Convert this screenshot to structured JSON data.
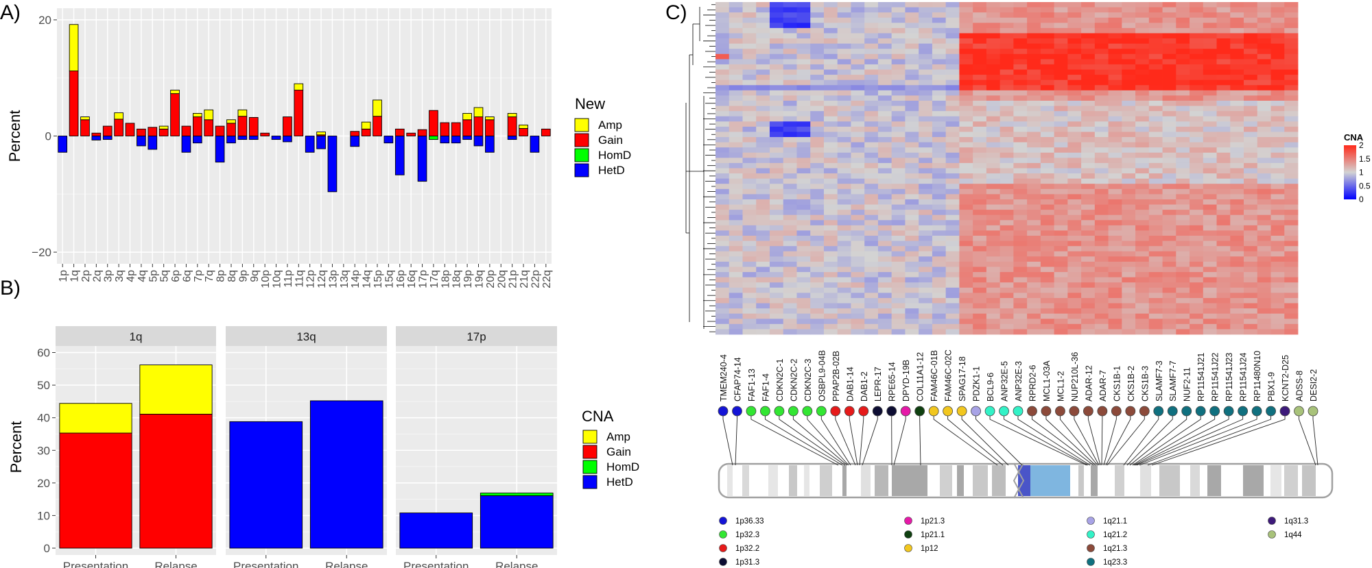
{
  "panels": {
    "a": "A)",
    "b": "B)",
    "c": "C)"
  },
  "chart_data": [
    {
      "panel": "A",
      "type": "bar",
      "stacked": true,
      "ylabel": "Percent",
      "ylim": [
        -22,
        22
      ],
      "yticks": [
        -20,
        0,
        20
      ],
      "categories": [
        "1p",
        "1q",
        "2p",
        "2q",
        "3p",
        "3q",
        "4p",
        "4q",
        "5p",
        "5q",
        "6p",
        "6q",
        "7p",
        "7q",
        "8p",
        "8q",
        "9p",
        "9q",
        "10p",
        "10q",
        "11p",
        "11q",
        "12p",
        "12q",
        "13p",
        "13q",
        "14p",
        "14q",
        "15p",
        "15q",
        "16p",
        "16q",
        "17p",
        "17q",
        "18p",
        "18q",
        "19p",
        "19q",
        "20p",
        "20q",
        "21p",
        "21q",
        "22p",
        "22q"
      ],
      "series": [
        {
          "name": "Gain",
          "color": "#FF0000",
          "values": [
            0,
            11.2,
            2.8,
            0.5,
            1.7,
            2.9,
            2.2,
            1.2,
            1.5,
            1.2,
            7.3,
            1.7,
            3.3,
            2.8,
            1.7,
            2.2,
            3.4,
            3.2,
            0.5,
            0,
            3.3,
            7.9,
            0,
            0.2,
            0,
            0,
            0.8,
            1.2,
            3.4,
            0,
            1.2,
            0.5,
            1.1,
            4.4,
            2.3,
            2.3,
            2.8,
            3.3,
            2.8,
            0,
            3.3,
            1.3,
            0,
            1.2
          ]
        },
        {
          "name": "Amp",
          "color": "#FFFF00",
          "values": [
            0,
            8,
            0.5,
            0,
            0,
            1.1,
            0,
            0,
            0,
            0.5,
            0.6,
            0,
            0.6,
            1.7,
            0,
            0.6,
            1.1,
            0,
            0,
            0,
            0,
            1.1,
            0,
            0.5,
            0,
            0,
            0,
            1.2,
            2.8,
            0,
            0,
            0,
            0,
            0,
            0,
            0,
            1.1,
            1.6,
            0.5,
            0,
            0.6,
            0.6,
            0,
            0
          ]
        },
        {
          "name": "HetD",
          "color": "#0000FF",
          "values": [
            -2.8,
            0,
            0,
            -0.7,
            -0.6,
            0,
            0,
            -1.7,
            -2.3,
            0,
            0,
            -2.8,
            -1.2,
            0,
            -4.5,
            -1.2,
            -0.6,
            -0.6,
            0,
            -0.6,
            -1,
            0,
            -2.8,
            -2.2,
            -9.6,
            0,
            -1.8,
            0,
            0,
            -1.2,
            -6.7,
            0,
            -7.8,
            0,
            -1.2,
            -1.2,
            -0.6,
            -1.7,
            -2.8,
            0,
            -0.6,
            0,
            -2.8,
            0
          ]
        },
        {
          "name": "HomD",
          "color": "#00FF00",
          "values": [
            0,
            0,
            0,
            0,
            0,
            0,
            0,
            0,
            0,
            0,
            0,
            0,
            0,
            0,
            0,
            0,
            0,
            0,
            0,
            0,
            0,
            0,
            0,
            0,
            0,
            0,
            0,
            0,
            0,
            0,
            0,
            0,
            0,
            -0.6,
            0,
            0,
            0,
            0,
            0,
            0,
            0,
            0,
            0,
            0
          ]
        }
      ],
      "legend": {
        "title": "New",
        "entries": [
          {
            "label": "Amp",
            "color": "#FFFF00"
          },
          {
            "label": "Gain",
            "color": "#FF0000"
          },
          {
            "label": "HomD",
            "color": "#00FF00"
          },
          {
            "label": "HetD",
            "color": "#0000FF"
          }
        ]
      }
    },
    {
      "panel": "B",
      "type": "bar",
      "stacked": true,
      "ylabel": "Percent",
      "ylim": [
        0,
        62
      ],
      "yticks": [
        0,
        10,
        20,
        30,
        40,
        50,
        60
      ],
      "categories": [
        "Presentation",
        "Relapse"
      ],
      "facets": [
        {
          "title": "1q",
          "series": [
            {
              "name": "Gain",
              "values": [
                35.3,
                41.1
              ]
            },
            {
              "name": "Amp",
              "values": [
                9.1,
                15.1
              ]
            }
          ]
        },
        {
          "title": "13q",
          "series": [
            {
              "name": "HetD",
              "values": [
                38.8,
                45.2
              ]
            }
          ]
        },
        {
          "title": "17p",
          "series": [
            {
              "name": "HetD",
              "values": [
                10.8,
                16.1
              ]
            },
            {
              "name": "HomD",
              "values": [
                0,
                0.8
              ]
            }
          ]
        }
      ],
      "colors": {
        "Amp": "#FFFF00",
        "Gain": "#FF0000",
        "HomD": "#00FF00",
        "HetD": "#0000FF"
      },
      "legend": {
        "title": "CNA",
        "entries": [
          {
            "label": "Amp",
            "color": "#FFFF00"
          },
          {
            "label": "Gain",
            "color": "#FF0000"
          },
          {
            "label": "HomD",
            "color": "#00FF00"
          },
          {
            "label": "HetD",
            "color": "#0000FF"
          }
        ]
      }
    },
    {
      "panel": "C",
      "type": "heatmap",
      "title": "",
      "color_scale": {
        "title": "CNA",
        "ticks": [
          0,
          0.5,
          1,
          1.5,
          2
        ],
        "colors": {
          "low": "#0000FF",
          "mid": "#D3D3D3",
          "high": "#FF2A1A"
        }
      },
      "columns": [
        "TMEM240-4",
        "CFAP74-14",
        "FAF1-13",
        "FAF1-4",
        "CDKN2C-1",
        "CDKN2C-2",
        "CDKN2C-3",
        "OSBPL9-04B",
        "PPAP2B-02B",
        "DAB1-14",
        "DAB1-2",
        "LEPR-17",
        "RPE65-14",
        "DPYD-19B",
        "COL11A1-12",
        "FAM46C-01B",
        "FAM46C-02C",
        "SPAG17-18",
        "PDZK1-1",
        "BCL9-6",
        "ANP32E-5",
        "ANP32E-3",
        "RPRD2-6",
        "MCL1-03A",
        "MCL1-2",
        "NUP210L-36",
        "ADAR-12",
        "ADAR-7",
        "CKS1B-1",
        "CKS1B-2",
        "CKS1B-3",
        "SLAMF7-3",
        "SLAMF7-7",
        "NUF2-11",
        "RP11541J21",
        "RP11541J22",
        "RP11541J23",
        "RP11541J24",
        "RP11480N10",
        "PBX1-9",
        "KCNT2-D25",
        "ADSS-8",
        "DESI2-2"
      ],
      "probe_bands": [
        "1p36.33",
        "1p36.33",
        "1p32.3",
        "1p32.3",
        "1p32.3",
        "1p32.3",
        "1p32.3",
        "1p32.3",
        "1p32.2",
        "1p32.2",
        "1p32.2",
        "1p31.3",
        "1p31.3",
        "1p21.3",
        "1p21.1",
        "1p12",
        "1p12",
        "1p12",
        "1q21.1",
        "1q21.2",
        "1q21.2",
        "1q21.2",
        "1q21.3",
        "1q21.3",
        "1q21.3",
        "1q21.3",
        "1q21.3",
        "1q21.3",
        "1q21.3",
        "1q21.3",
        "1q21.3",
        "1q23.3",
        "1q23.3",
        "1q23.3",
        "1q23.3",
        "1q23.3",
        "1q23.3",
        "1q23.3",
        "1q23.3",
        "1q23.3",
        "1q31.3",
        "1q44",
        "1q44"
      ],
      "band_legend": [
        {
          "label": "1p36.33",
          "color": "#1414D6"
        },
        {
          "label": "1p32.3",
          "color": "#33E633"
        },
        {
          "label": "1p32.2",
          "color": "#E61A1A"
        },
        {
          "label": "1p31.3",
          "color": "#0D0D33"
        },
        {
          "label": "1p21.3",
          "color": "#E619A8"
        },
        {
          "label": "1p21.1",
          "color": "#0F4010"
        },
        {
          "label": "1p12",
          "color": "#F2C71F"
        },
        {
          "label": "1q21.1",
          "color": "#A8A3E6"
        },
        {
          "label": "1q21.2",
          "color": "#33F2C7"
        },
        {
          "label": "1q21.3",
          "color": "#8C4A3A"
        },
        {
          "label": "1q23.3",
          "color": "#10707F"
        },
        {
          "label": "1q31.3",
          "color": "#3D1A7A"
        },
        {
          "label": "1q44",
          "color": "#A8C27A"
        }
      ]
    }
  ]
}
